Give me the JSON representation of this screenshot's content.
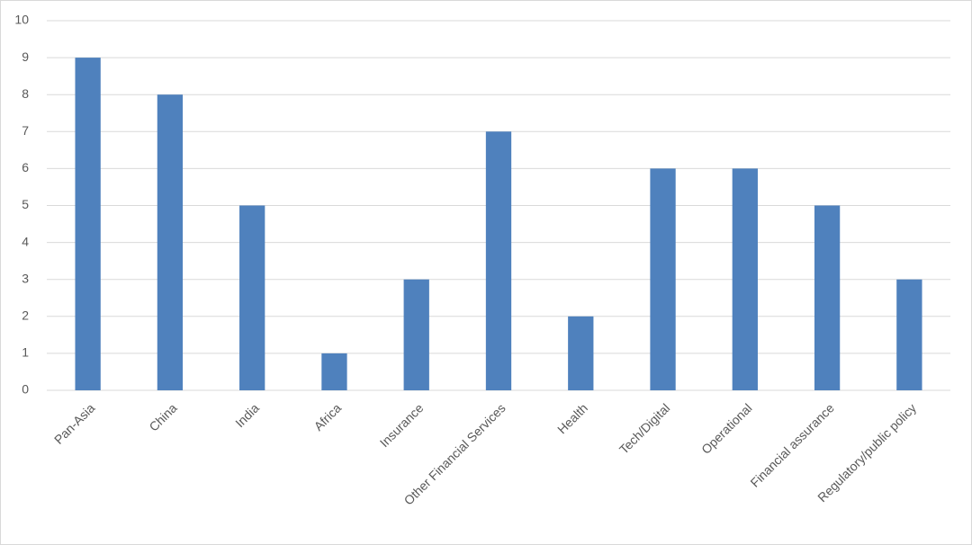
{
  "chart_data": {
    "type": "bar",
    "categories": [
      "Pan-Asia",
      "China",
      "India",
      "Africa",
      "Insurance",
      "Other Financial Services",
      "Health",
      "Tech/Digital",
      "Operational",
      "Financial assurance",
      "Regulatory/public policy"
    ],
    "values": [
      9,
      8,
      5,
      1,
      3,
      7,
      2,
      6,
      6,
      5,
      3
    ],
    "color": "#4f81bd",
    "ylim": [
      0,
      10
    ],
    "yticks": [
      0,
      1,
      2,
      3,
      4,
      5,
      6,
      7,
      8,
      9,
      10
    ],
    "grid": true
  }
}
